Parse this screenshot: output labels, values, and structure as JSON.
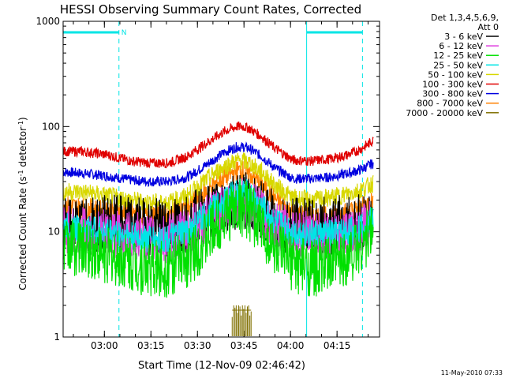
{
  "chart_data": {
    "type": "line",
    "title": "HESSI Observing Summary Count Rates, Corrected",
    "ylabel": "Corrected Count Rate (s",
    "ylabel_sup": "-1",
    "ylabel_mid": " detector",
    "ylabel_sup2": "-1",
    "ylabel_end": ")",
    "xlabel": "Start Time (12-Nov-09 02:46:42)",
    "footer_date": "11-May-2010 07:33",
    "yscale": "log",
    "ylim": [
      1,
      1000
    ],
    "y_ticks": [
      {
        "value": 1,
        "label": "1"
      },
      {
        "value": 10,
        "label": "10"
      },
      {
        "value": 100,
        "label": "100"
      },
      {
        "value": 1000,
        "label": "1000"
      }
    ],
    "x_unit": "minutes since 02:46:42",
    "xlim": [
      0,
      102
    ],
    "x_ticks": [
      {
        "value": 13.3,
        "label": "03:00"
      },
      {
        "value": 28.3,
        "label": "03:15"
      },
      {
        "value": 43.3,
        "label": "03:30"
      },
      {
        "value": 58.3,
        "label": "03:45"
      },
      {
        "value": 73.3,
        "label": "04:00"
      },
      {
        "value": 88.3,
        "label": "04:15"
      }
    ],
    "legend": {
      "placement": "right",
      "header_1": "Det 1,3,4,5,6,9,",
      "header_2": "Att 0",
      "entries": [
        {
          "label": "3 - 6 keV",
          "color": "#000000"
        },
        {
          "label": "6 - 12 keV",
          "color": "#e040e0"
        },
        {
          "label": "12 - 25 keV",
          "color": "#00e000"
        },
        {
          "label": "25 - 50 keV",
          "color": "#00e5e5"
        },
        {
          "label": "50 - 100 keV",
          "color": "#d8d800"
        },
        {
          "label": "100 - 300 keV",
          "color": "#e00000"
        },
        {
          "label": "300 - 800 keV",
          "color": "#0000e0"
        },
        {
          "label": "800 - 7000 keV",
          "color": "#ff8000"
        },
        {
          "label": "7000 - 20000 keV",
          "color": "#807000"
        }
      ]
    },
    "series": [
      {
        "name": "300 - 800 keV",
        "color": "#0000e0",
        "noise": 0.012,
        "x": [
          0,
          6,
          14,
          22,
          28,
          34,
          40,
          46,
          52,
          56,
          58,
          60,
          64,
          68,
          74,
          80,
          86,
          92,
          96,
          100
        ],
        "y": [
          37,
          36,
          34,
          31,
          30,
          30,
          33,
          43,
          57,
          64,
          64,
          62,
          52,
          41,
          32,
          32,
          33,
          36,
          39,
          45
        ]
      },
      {
        "name": "100 - 300 keV",
        "color": "#e00000",
        "noise": 0.012,
        "x": [
          0,
          6,
          14,
          22,
          28,
          34,
          40,
          46,
          52,
          56,
          58,
          60,
          64,
          68,
          74,
          80,
          86,
          92,
          96,
          100
        ],
        "y": [
          58,
          58,
          54,
          47,
          45,
          45,
          52,
          69,
          90,
          100,
          100,
          96,
          80,
          63,
          48,
          47,
          49,
          54,
          61,
          74
        ]
      },
      {
        "name": "800 - 7000 keV",
        "color": "#ff8000",
        "noise": 0.025,
        "x": [
          0,
          6,
          14,
          22,
          28,
          34,
          40,
          46,
          52,
          56,
          58,
          60,
          64,
          68,
          74,
          80,
          86,
          92,
          96,
          100
        ],
        "y": [
          18,
          17,
          16,
          15,
          14,
          14.5,
          17,
          24,
          33,
          38,
          38,
          36,
          28,
          21,
          15,
          14,
          14,
          15.5,
          17,
          20
        ]
      },
      {
        "name": "50 - 100 keV",
        "color": "#d8d800",
        "noise": 0.022,
        "x": [
          0,
          6,
          14,
          22,
          28,
          34,
          40,
          46,
          52,
          56,
          58,
          60,
          64,
          68,
          74,
          80,
          86,
          92,
          96,
          100
        ],
        "y": [
          24,
          24,
          22,
          20,
          19,
          19,
          22,
          31,
          42,
          47,
          47,
          45,
          37,
          28,
          21,
          20,
          21,
          23,
          25,
          29
        ]
      },
      {
        "name": "3 - 6 keV",
        "color": "#000000",
        "noise": 0.07,
        "x": [
          0,
          6,
          14,
          22,
          28,
          34,
          40,
          46,
          52,
          56,
          58,
          60,
          64,
          68,
          74,
          80,
          86,
          92,
          96,
          100
        ],
        "y": [
          11,
          11,
          12,
          11.5,
          11,
          11,
          12,
          15,
          18,
          20,
          20,
          19,
          16,
          13,
          11.5,
          11,
          11.5,
          12,
          12.5,
          13
        ]
      },
      {
        "name": "6 - 12 keV",
        "color": "#e040e0",
        "noise": 0.06,
        "x": [
          0,
          6,
          14,
          22,
          28,
          34,
          40,
          46,
          52,
          56,
          58,
          60,
          64,
          68,
          74,
          80,
          86,
          92,
          96,
          100
        ],
        "y": [
          10.5,
          10,
          9.5,
          9,
          8.5,
          8.5,
          10,
          13,
          17,
          19,
          19,
          18,
          14.5,
          11.5,
          9.5,
          9,
          9,
          9.5,
          10.5,
          12
        ]
      },
      {
        "name": "25 - 50 keV",
        "color": "#00e5e5",
        "noise": 0.035,
        "x": [
          0,
          6,
          14,
          22,
          28,
          34,
          40,
          46,
          52,
          56,
          58,
          60,
          64,
          68,
          74,
          80,
          86,
          92,
          96,
          100
        ],
        "y": [
          11,
          10.5,
          10,
          9,
          8.5,
          8.5,
          10,
          14,
          20,
          24,
          24,
          22,
          17,
          12.5,
          10,
          9.5,
          9.5,
          10,
          11,
          13
        ]
      },
      {
        "name": "12 - 25 keV",
        "color": "#00e000",
        "noise": 0.07,
        "x": [
          0,
          6,
          14,
          22,
          28,
          34,
          40,
          46,
          52,
          56,
          58,
          60,
          64,
          68,
          74,
          80,
          86,
          92,
          96,
          100
        ],
        "y": [
          7.5,
          7,
          6,
          5,
          4.5,
          4.5,
          5.5,
          8.5,
          14,
          17,
          17,
          15.5,
          11,
          7,
          5,
          4.5,
          4.7,
          6,
          7.5,
          10
        ]
      }
    ],
    "bursts": {
      "name": "7000 - 20000 keV",
      "color": "#807000",
      "x": [
        54.5,
        55,
        55.4,
        55.8,
        56.2,
        56.6,
        57,
        57.4,
        57.8,
        58.2,
        58.6,
        59,
        59.4,
        59.8,
        60.2,
        60.6
      ],
      "y": [
        1.55,
        2.0,
        1.9,
        2.0,
        1.7,
        2.0,
        1.95,
        1.6,
        2.0,
        1.85,
        2.0,
        1.7,
        1.95,
        2.0,
        1.6,
        1.75
      ]
    },
    "region_lines": [
      0,
      18,
      78.5,
      96.5
    ],
    "night_bars": [
      {
        "from": 0,
        "to": 18,
        "label": "N"
      },
      {
        "from": 78.5,
        "to": 96.5,
        "label": ""
      }
    ]
  }
}
